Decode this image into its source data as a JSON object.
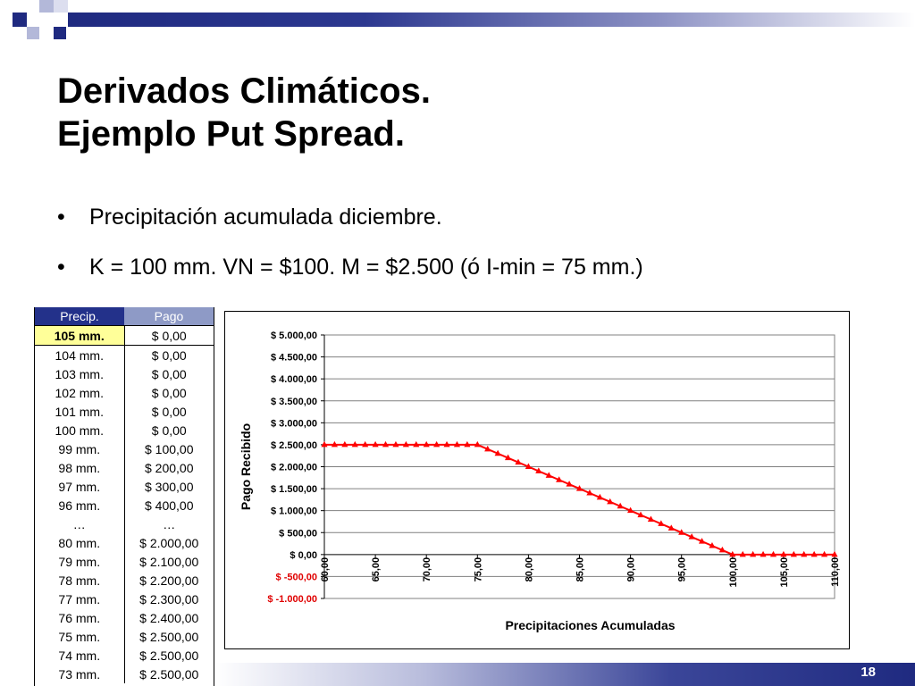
{
  "slide": {
    "title_lines": [
      "Derivados Climáticos.",
      "Ejemplo Put Spread."
    ],
    "bullets": [
      "Precipitación acumulada diciembre.",
      "K = 100 mm. VN = $100. M = $2.500 (ó I-min = 75 mm.)"
    ],
    "bullet_symbol": "•",
    "page_number": "18",
    "colors": {
      "navy": "#1f2a80",
      "header_light": "#8e9ac6",
      "highlight": "#ffff99",
      "series": "#ff0000"
    }
  },
  "table": {
    "headers": [
      "Precip.",
      "Pago"
    ],
    "rows": [
      [
        "105 mm.",
        "$ 0,00"
      ],
      [
        "104 mm.",
        "$ 0,00"
      ],
      [
        "103 mm.",
        "$ 0,00"
      ],
      [
        "102 mm.",
        "$ 0,00"
      ],
      [
        "101 mm.",
        "$ 0,00"
      ],
      [
        "100 mm.",
        "$ 0,00"
      ],
      [
        "99 mm.",
        "$ 100,00"
      ],
      [
        "98 mm.",
        "$ 200,00"
      ],
      [
        "97 mm.",
        "$ 300,00"
      ],
      [
        "96 mm.",
        "$ 400,00"
      ],
      [
        "…",
        "…"
      ],
      [
        "80 mm.",
        "$ 2.000,00"
      ],
      [
        "79 mm.",
        "$ 2.100,00"
      ],
      [
        "78 mm.",
        "$ 2.200,00"
      ],
      [
        "77 mm.",
        "$ 2.300,00"
      ],
      [
        "76 mm.",
        "$ 2.400,00"
      ],
      [
        "75 mm.",
        "$ 2.500,00"
      ],
      [
        "74 mm.",
        "$ 2.500,00"
      ],
      [
        "73 mm.",
        "$ 2.500,00"
      ]
    ]
  },
  "chart_data": {
    "type": "line",
    "xlabel": "Precipitaciones Acumuladas",
    "ylabel": "Pago Recibido",
    "xlim": [
      60,
      110
    ],
    "ylim": [
      -1000,
      5000
    ],
    "x_ticks": [
      "60,00",
      "65,00",
      "70,00",
      "75,00",
      "80,00",
      "85,00",
      "90,00",
      "95,00",
      "100,00",
      "105,00",
      "110,00"
    ],
    "y_ticks": [
      "$ 5.000,00",
      "$ 4.500,00",
      "$ 4.000,00",
      "$ 3.500,00",
      "$ 3.000,00",
      "$ 2.500,00",
      "$ 2.000,00",
      "$ 1.500,00",
      "$ 1.000,00",
      "$ 500,00",
      "$ 0,00",
      "$ -500,00",
      "$ -1.000,00"
    ],
    "grid": "horizontal",
    "series": [
      {
        "marker": "triangle",
        "color": "#ff0000",
        "x": [
          60,
          61,
          62,
          63,
          64,
          65,
          66,
          67,
          68,
          69,
          70,
          71,
          72,
          73,
          74,
          75,
          76,
          77,
          78,
          79,
          80,
          81,
          82,
          83,
          84,
          85,
          86,
          87,
          88,
          89,
          90,
          91,
          92,
          93,
          94,
          95,
          96,
          97,
          98,
          99,
          100,
          101,
          102,
          103,
          104,
          105,
          106,
          107,
          108,
          109,
          110
        ],
        "y": [
          2500,
          2500,
          2500,
          2500,
          2500,
          2500,
          2500,
          2500,
          2500,
          2500,
          2500,
          2500,
          2500,
          2500,
          2500,
          2500,
          2400,
          2300,
          2200,
          2100,
          2000,
          1900,
          1800,
          1700,
          1600,
          1500,
          1400,
          1300,
          1200,
          1100,
          1000,
          900,
          800,
          700,
          600,
          500,
          400,
          300,
          200,
          100,
          0,
          0,
          0,
          0,
          0,
          0,
          0,
          0,
          0,
          0,
          0
        ]
      }
    ]
  }
}
